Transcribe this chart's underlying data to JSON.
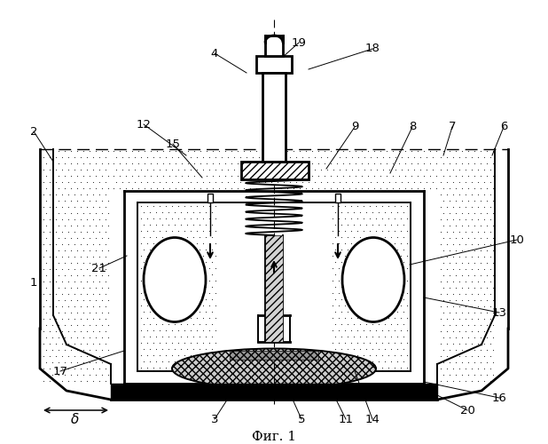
{
  "fig_caption": "Фиг. 1",
  "bg_color": "#ffffff",
  "lc": "#000000",
  "labels": [
    "1",
    "2",
    "3",
    "4",
    "5",
    "6",
    "7",
    "8",
    "9",
    "10",
    "11",
    "12",
    "13",
    "14",
    "15",
    "16",
    "17",
    "18",
    "19",
    "20",
    "21"
  ],
  "delta_label": "δ"
}
